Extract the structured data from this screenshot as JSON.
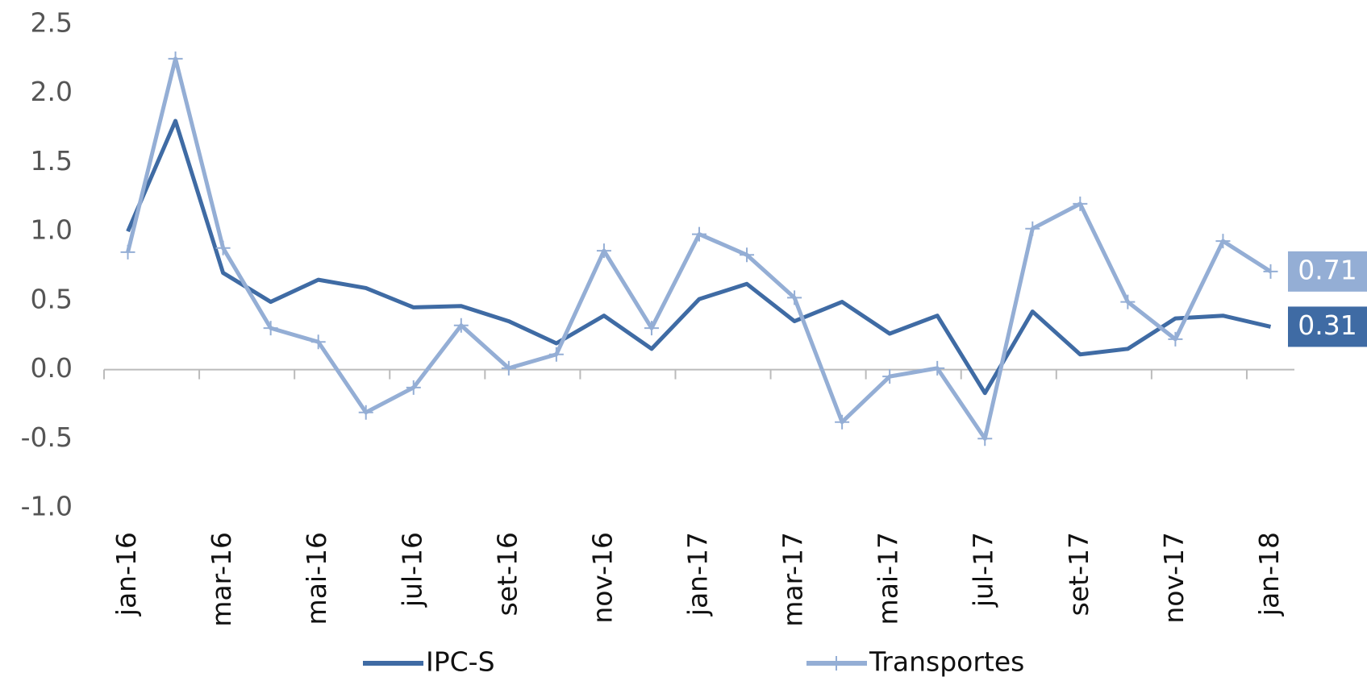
{
  "chart_data": {
    "type": "line",
    "categories": [
      "jan-16",
      null,
      "mar-16",
      null,
      "mai-16",
      null,
      "jul-16",
      null,
      "set-16",
      null,
      "nov-16",
      null,
      "jan-17",
      null,
      "mar-17",
      null,
      "mai-17",
      null,
      "jul-17",
      null,
      "set-17",
      null,
      "nov-17",
      null,
      "jan-18"
    ],
    "series": [
      {
        "name": "IPC-S",
        "color": "#3f6ba4",
        "values": [
          1.0,
          1.8,
          0.7,
          0.49,
          0.65,
          0.59,
          0.45,
          0.46,
          0.35,
          0.19,
          0.39,
          0.15,
          0.51,
          0.62,
          0.35,
          0.49,
          0.26,
          0.39,
          -0.17,
          0.42,
          0.11,
          0.15,
          0.37,
          0.39,
          0.31
        ]
      },
      {
        "name": "Transportes",
        "color": "#94aed5",
        "values": [
          0.85,
          2.25,
          0.88,
          0.3,
          0.2,
          -0.31,
          -0.13,
          0.32,
          0.01,
          0.11,
          0.86,
          0.3,
          0.98,
          0.83,
          0.52,
          -0.38,
          -0.05,
          0.01,
          -0.5,
          1.02,
          1.2,
          0.49,
          0.22,
          0.93,
          0.71
        ]
      }
    ],
    "ylim": [
      -1.0,
      2.5
    ],
    "yticks": [
      {
        "value": -1.0,
        "label": "-1.0"
      },
      -0.5,
      {
        "value": 0.0,
        "label": "0.0"
      },
      0.5,
      {
        "value": 1.0,
        "label": "1.0"
      },
      1.5,
      {
        "value": 2.0,
        "label": "2.0"
      },
      2.5
    ],
    "legend": "bottom"
  }
}
